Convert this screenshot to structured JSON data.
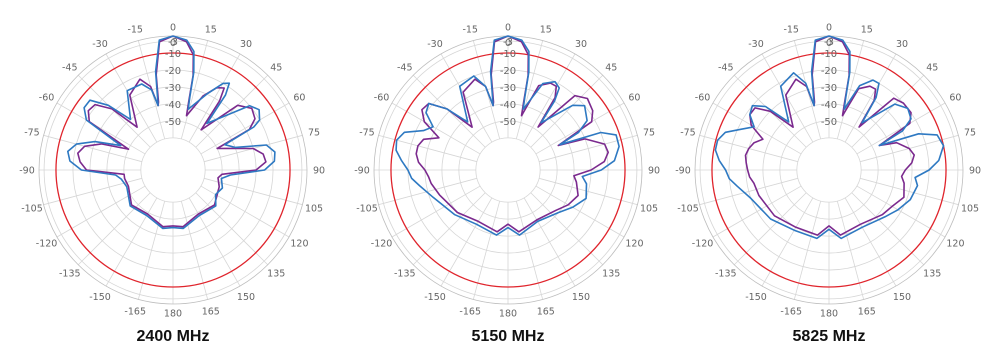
{
  "chart_data": [
    {
      "type": "polar-line",
      "title": "2400 MHz",
      "angle_ticks": [
        "0",
        "15",
        "30",
        "45",
        "60",
        "75",
        "90",
        "105",
        "120",
        "135",
        "150",
        "165",
        "180",
        "-165",
        "-150",
        "-135",
        "-120",
        "-105",
        "-90",
        "-75",
        "-60",
        "-45",
        "-30",
        "-15"
      ],
      "radial_ticks": [
        "0",
        "-3",
        "-10",
        "-20",
        "-30",
        "-40",
        "-50"
      ],
      "radial_range_db": [
        -60,
        0
      ],
      "reference_circle_db": -10,
      "grid": true,
      "series": [
        {
          "color": "#2e79c2",
          "angles": [
            0,
            6,
            10,
            12,
            13,
            14,
            24,
            30,
            33,
            35,
            36,
            50,
            55,
            60,
            62,
            64,
            70,
            75,
            80,
            85,
            90,
            95,
            100,
            110,
            120,
            130,
            150,
            170,
            180,
            -170,
            -150,
            -130,
            -110,
            -100,
            -95,
            -90,
            -85,
            -80,
            -75,
            -70,
            -65,
            -60,
            -55,
            -50,
            -45,
            -40,
            -30,
            -20,
            -15,
            -13,
            -12,
            -10,
            -6,
            0
          ],
          "values": [
            0,
            -2,
            -8,
            -20,
            -35,
            -42,
            -30,
            -20,
            -18,
            -25,
            -45,
            -20,
            -17,
            -20,
            -25,
            -45,
            -40,
            -22,
            -18,
            -19,
            -25,
            -45,
            -50,
            -48,
            -50,
            -46,
            -48,
            -44,
            -45,
            -44,
            -48,
            -46,
            -50,
            -48,
            -45,
            -25,
            -18,
            -16,
            -20,
            -30,
            -45,
            -20,
            -15,
            -15,
            -25,
            -40,
            -25,
            -25,
            -30,
            -40,
            -35,
            -20,
            -2,
            0
          ]
        },
        {
          "color": "#7b2a8e",
          "angles": [
            0,
            6,
            10,
            12,
            13,
            14,
            22,
            28,
            32,
            34,
            35,
            45,
            52,
            58,
            62,
            64,
            68,
            75,
            80,
            85,
            90,
            95,
            100,
            110,
            120,
            130,
            150,
            170,
            180,
            -170,
            -150,
            -130,
            -110,
            -100,
            -95,
            -90,
            -85,
            -80,
            -75,
            -70,
            -65,
            -60,
            -55,
            -50,
            -45,
            -40,
            -30,
            -20,
            -15,
            -13,
            -12,
            -10,
            -6,
            0
          ],
          "values": [
            0,
            -3,
            -10,
            -22,
            -38,
            -46,
            -32,
            -24,
            -22,
            -30,
            -50,
            -25,
            -20,
            -22,
            -28,
            -50,
            -45,
            -30,
            -25,
            -24,
            -30,
            -50,
            -52,
            -50,
            -49,
            -47,
            -49,
            -45,
            -46,
            -45,
            -49,
            -47,
            -51,
            -50,
            -50,
            -28,
            -24,
            -22,
            -25,
            -34,
            -50,
            -22,
            -18,
            -19,
            -28,
            -46,
            -28,
            -22,
            -28,
            -40,
            -38,
            -22,
            -3,
            0
          ]
        }
      ]
    },
    {
      "type": "polar-line",
      "title": "5150 MHz",
      "angle_ticks": [
        "0",
        "15",
        "30",
        "45",
        "60",
        "75",
        "90",
        "105",
        "120",
        "135",
        "150",
        "165",
        "180",
        "-165",
        "-150",
        "-135",
        "-120",
        "-105",
        "-90",
        "-75",
        "-60",
        "-45",
        "-30",
        "-15"
      ],
      "radial_ticks": [
        "0",
        "-3",
        "-10",
        "-20",
        "-30",
        "-40",
        "-50"
      ],
      "radial_range_db": [
        -60,
        0
      ],
      "reference_circle_db": -10,
      "grid": true,
      "series": [
        {
          "color": "#2e79c2",
          "angles": [
            0,
            6,
            10,
            12,
            13,
            14,
            22,
            28,
            32,
            34,
            35,
            45,
            50,
            58,
            62,
            64,
            68,
            72,
            78,
            85,
            90,
            95,
            100,
            110,
            120,
            130,
            150,
            170,
            180,
            -170,
            -150,
            -130,
            -110,
            -100,
            -95,
            -90,
            -85,
            -80,
            -75,
            -70,
            -65,
            -60,
            -55,
            -50,
            -45,
            -40,
            -30,
            -20,
            -15,
            -13,
            -12,
            -10,
            -6,
            0
          ],
          "values": [
            0,
            -2,
            -8,
            -20,
            -35,
            -42,
            -24,
            -20,
            -22,
            -30,
            -45,
            -25,
            -20,
            -24,
            -32,
            -45,
            -20,
            -12,
            -12,
            -16,
            -24,
            -35,
            -32,
            -30,
            -35,
            -40,
            -44,
            -40,
            -45,
            -40,
            -42,
            -38,
            -32,
            -26,
            -22,
            -20,
            -16,
            -12,
            -11,
            -14,
            -24,
            -28,
            -20,
            -18,
            -28,
            -42,
            -22,
            -20,
            -28,
            -40,
            -35,
            -20,
            -2,
            0
          ]
        },
        {
          "color": "#7b2a8e",
          "angles": [
            0,
            6,
            10,
            12,
            13,
            14,
            20,
            26,
            30,
            33,
            35,
            42,
            48,
            55,
            60,
            64,
            68,
            75,
            80,
            85,
            90,
            95,
            100,
            110,
            120,
            130,
            150,
            170,
            180,
            -170,
            -150,
            -130,
            -110,
            -100,
            -95,
            -90,
            -85,
            -80,
            -75,
            -70,
            -65,
            -60,
            -55,
            -50,
            -45,
            -40,
            -30,
            -20,
            -15,
            -13,
            -12,
            -10,
            -6,
            0
          ],
          "values": [
            0,
            -3,
            -10,
            -22,
            -38,
            -46,
            -26,
            -22,
            -22,
            -28,
            -48,
            -20,
            -16,
            -18,
            -22,
            -46,
            -30,
            -20,
            -19,
            -22,
            -30,
            -40,
            -38,
            -35,
            -38,
            -42,
            -45,
            -42,
            -47,
            -42,
            -44,
            -40,
            -36,
            -33,
            -32,
            -30,
            -26,
            -24,
            -24,
            -26,
            -34,
            -22,
            -17,
            -18,
            -28,
            -46,
            -26,
            -22,
            -28,
            -40,
            -38,
            -22,
            -3,
            0
          ]
        }
      ]
    },
    {
      "type": "polar-line",
      "title": "5825 MHz",
      "angle_ticks": [
        "0",
        "15",
        "30",
        "45",
        "60",
        "75",
        "90",
        "105",
        "120",
        "135",
        "150",
        "165",
        "180",
        "-165",
        "-150",
        "-135",
        "-120",
        "-105",
        "-90",
        "-75",
        "-60",
        "-45",
        "-30",
        "-15"
      ],
      "radial_ticks": [
        "0",
        "-3",
        "-10",
        "-20",
        "-30",
        "-40",
        "-50"
      ],
      "radial_range_db": [
        -60,
        0
      ],
      "reference_circle_db": -10,
      "grid": true,
      "series": [
        {
          "color": "#2e79c2",
          "angles": [
            0,
            6,
            10,
            12,
            13,
            14,
            20,
            26,
            30,
            33,
            35,
            45,
            52,
            58,
            62,
            64,
            68,
            72,
            78,
            85,
            90,
            95,
            100,
            110,
            120,
            130,
            150,
            170,
            180,
            -170,
            -150,
            -130,
            -110,
            -100,
            -95,
            -90,
            -85,
            -80,
            -75,
            -70,
            -65,
            -60,
            -55,
            -50,
            -45,
            -40,
            -30,
            -20,
            -15,
            -13,
            -12,
            -10,
            -6,
            0
          ],
          "values": [
            0,
            -2,
            -8,
            -20,
            -35,
            -42,
            -26,
            -20,
            -20,
            -28,
            -45,
            -24,
            -20,
            -22,
            -30,
            -46,
            -22,
            -12,
            -10,
            -14,
            -20,
            -28,
            -26,
            -28,
            -32,
            -36,
            -40,
            -38,
            -44,
            -38,
            -38,
            -34,
            -30,
            -24,
            -20,
            -18,
            -14,
            -11,
            -11,
            -14,
            -22,
            -28,
            -22,
            -20,
            -26,
            -42,
            -22,
            -18,
            -26,
            -40,
            -35,
            -20,
            -2,
            0
          ]
        },
        {
          "color": "#7b2a8e",
          "angles": [
            0,
            6,
            10,
            12,
            13,
            14,
            20,
            26,
            30,
            33,
            35,
            42,
            48,
            55,
            60,
            64,
            68,
            75,
            80,
            85,
            90,
            95,
            100,
            110,
            120,
            130,
            150,
            170,
            180,
            -170,
            -150,
            -130,
            -110,
            -100,
            -95,
            -90,
            -85,
            -80,
            -75,
            -70,
            -65,
            -60,
            -55,
            -50,
            -45,
            -40,
            -30,
            -20,
            -15,
            -13,
            -12,
            -10,
            -6,
            0
          ],
          "values": [
            0,
            -3,
            -10,
            -22,
            -38,
            -46,
            -28,
            -24,
            -24,
            -30,
            -48,
            -22,
            -20,
            -20,
            -24,
            -46,
            -36,
            -30,
            -28,
            -30,
            -34,
            -36,
            -34,
            -32,
            -36,
            -38,
            -42,
            -40,
            -46,
            -40,
            -40,
            -37,
            -35,
            -34,
            -32,
            -31,
            -30,
            -29,
            -30,
            -32,
            -36,
            -26,
            -22,
            -22,
            -30,
            -46,
            -28,
            -22,
            -28,
            -40,
            -38,
            -22,
            -3,
            0
          ]
        }
      ]
    }
  ]
}
